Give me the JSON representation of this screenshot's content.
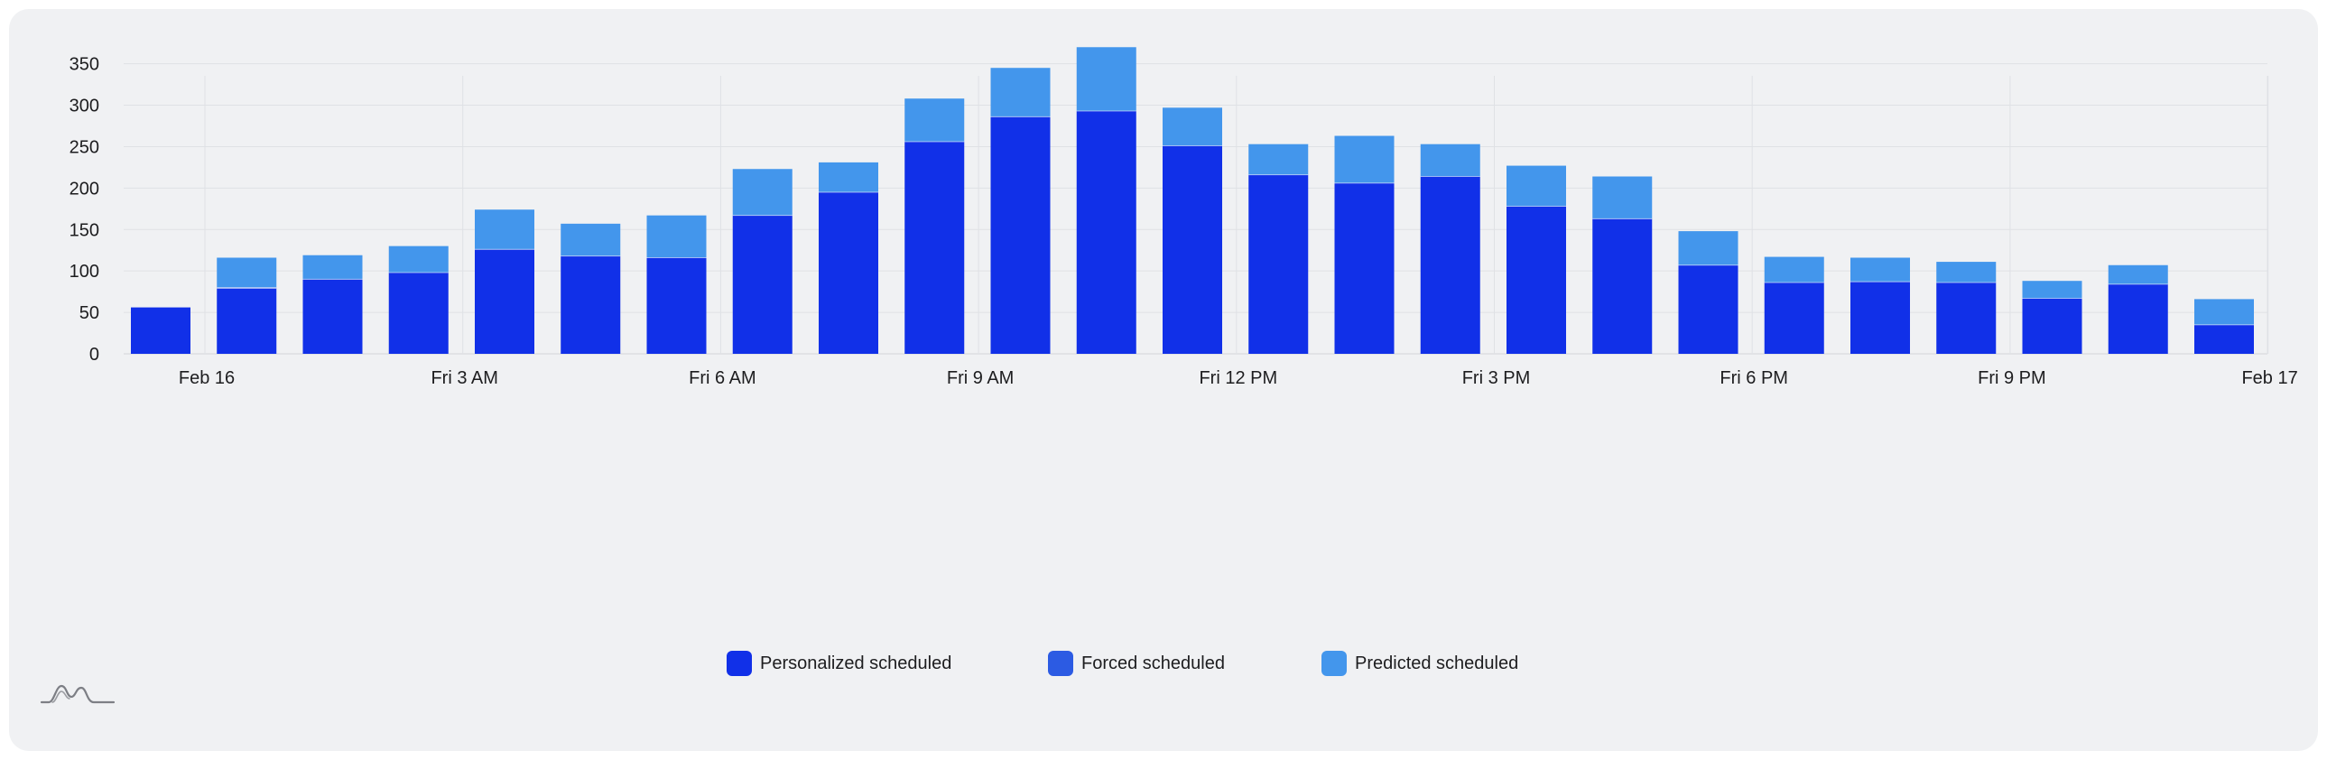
{
  "chart_data": {
    "type": "bar",
    "stacked": true,
    "title": "",
    "xlabel": "",
    "ylabel": "",
    "ylim": [
      0,
      370
    ],
    "yticks": [
      0,
      50,
      100,
      150,
      200,
      250,
      300,
      350
    ],
    "grid": true,
    "legend_position": "bottom-center",
    "x_tick_labels": [
      "Feb 16",
      "Fri 3 AM",
      "Fri 6 AM",
      "Fri 9 AM",
      "Fri 12 PM",
      "Fri 3 PM",
      "Fri 6 PM",
      "Fri 9 PM",
      "Feb 17"
    ],
    "categories": [
      "00:00",
      "01:00",
      "02:00",
      "03:00",
      "04:00",
      "05:00",
      "06:00",
      "07:00",
      "08:00",
      "09:00",
      "10:00",
      "11:00",
      "12:00",
      "13:00",
      "14:00",
      "15:00",
      "16:00",
      "17:00",
      "18:00",
      "19:00",
      "20:00",
      "21:00",
      "22:00",
      "23:00"
    ],
    "series": [
      {
        "name": "Personalized scheduled",
        "color": "#1130e8",
        "values": [
          56,
          79,
          90,
          98,
          126,
          118,
          116,
          167,
          195,
          256,
          286,
          293,
          251,
          216,
          206,
          214,
          178,
          163,
          107,
          86,
          87,
          86,
          67,
          84
        ]
      },
      {
        "name": "Forced scheduled",
        "color": "#2c5be3",
        "values": [
          0,
          1,
          0,
          0,
          0,
          0,
          0,
          0,
          0,
          0,
          0,
          0,
          0,
          0,
          0,
          0,
          0,
          0,
          0,
          0,
          0,
          0,
          0,
          0
        ]
      },
      {
        "name": "Predicted scheduled",
        "color": "#4396ec",
        "values": [
          0,
          36,
          29,
          32,
          48,
          39,
          51,
          56,
          36,
          52,
          59,
          77,
          46,
          37,
          57,
          39,
          49,
          51,
          41,
          31,
          29,
          25,
          21,
          23
        ]
      }
    ],
    "extra_bar": {
      "category": "24:00",
      "values": [
        35,
        0,
        31
      ]
    }
  }
}
